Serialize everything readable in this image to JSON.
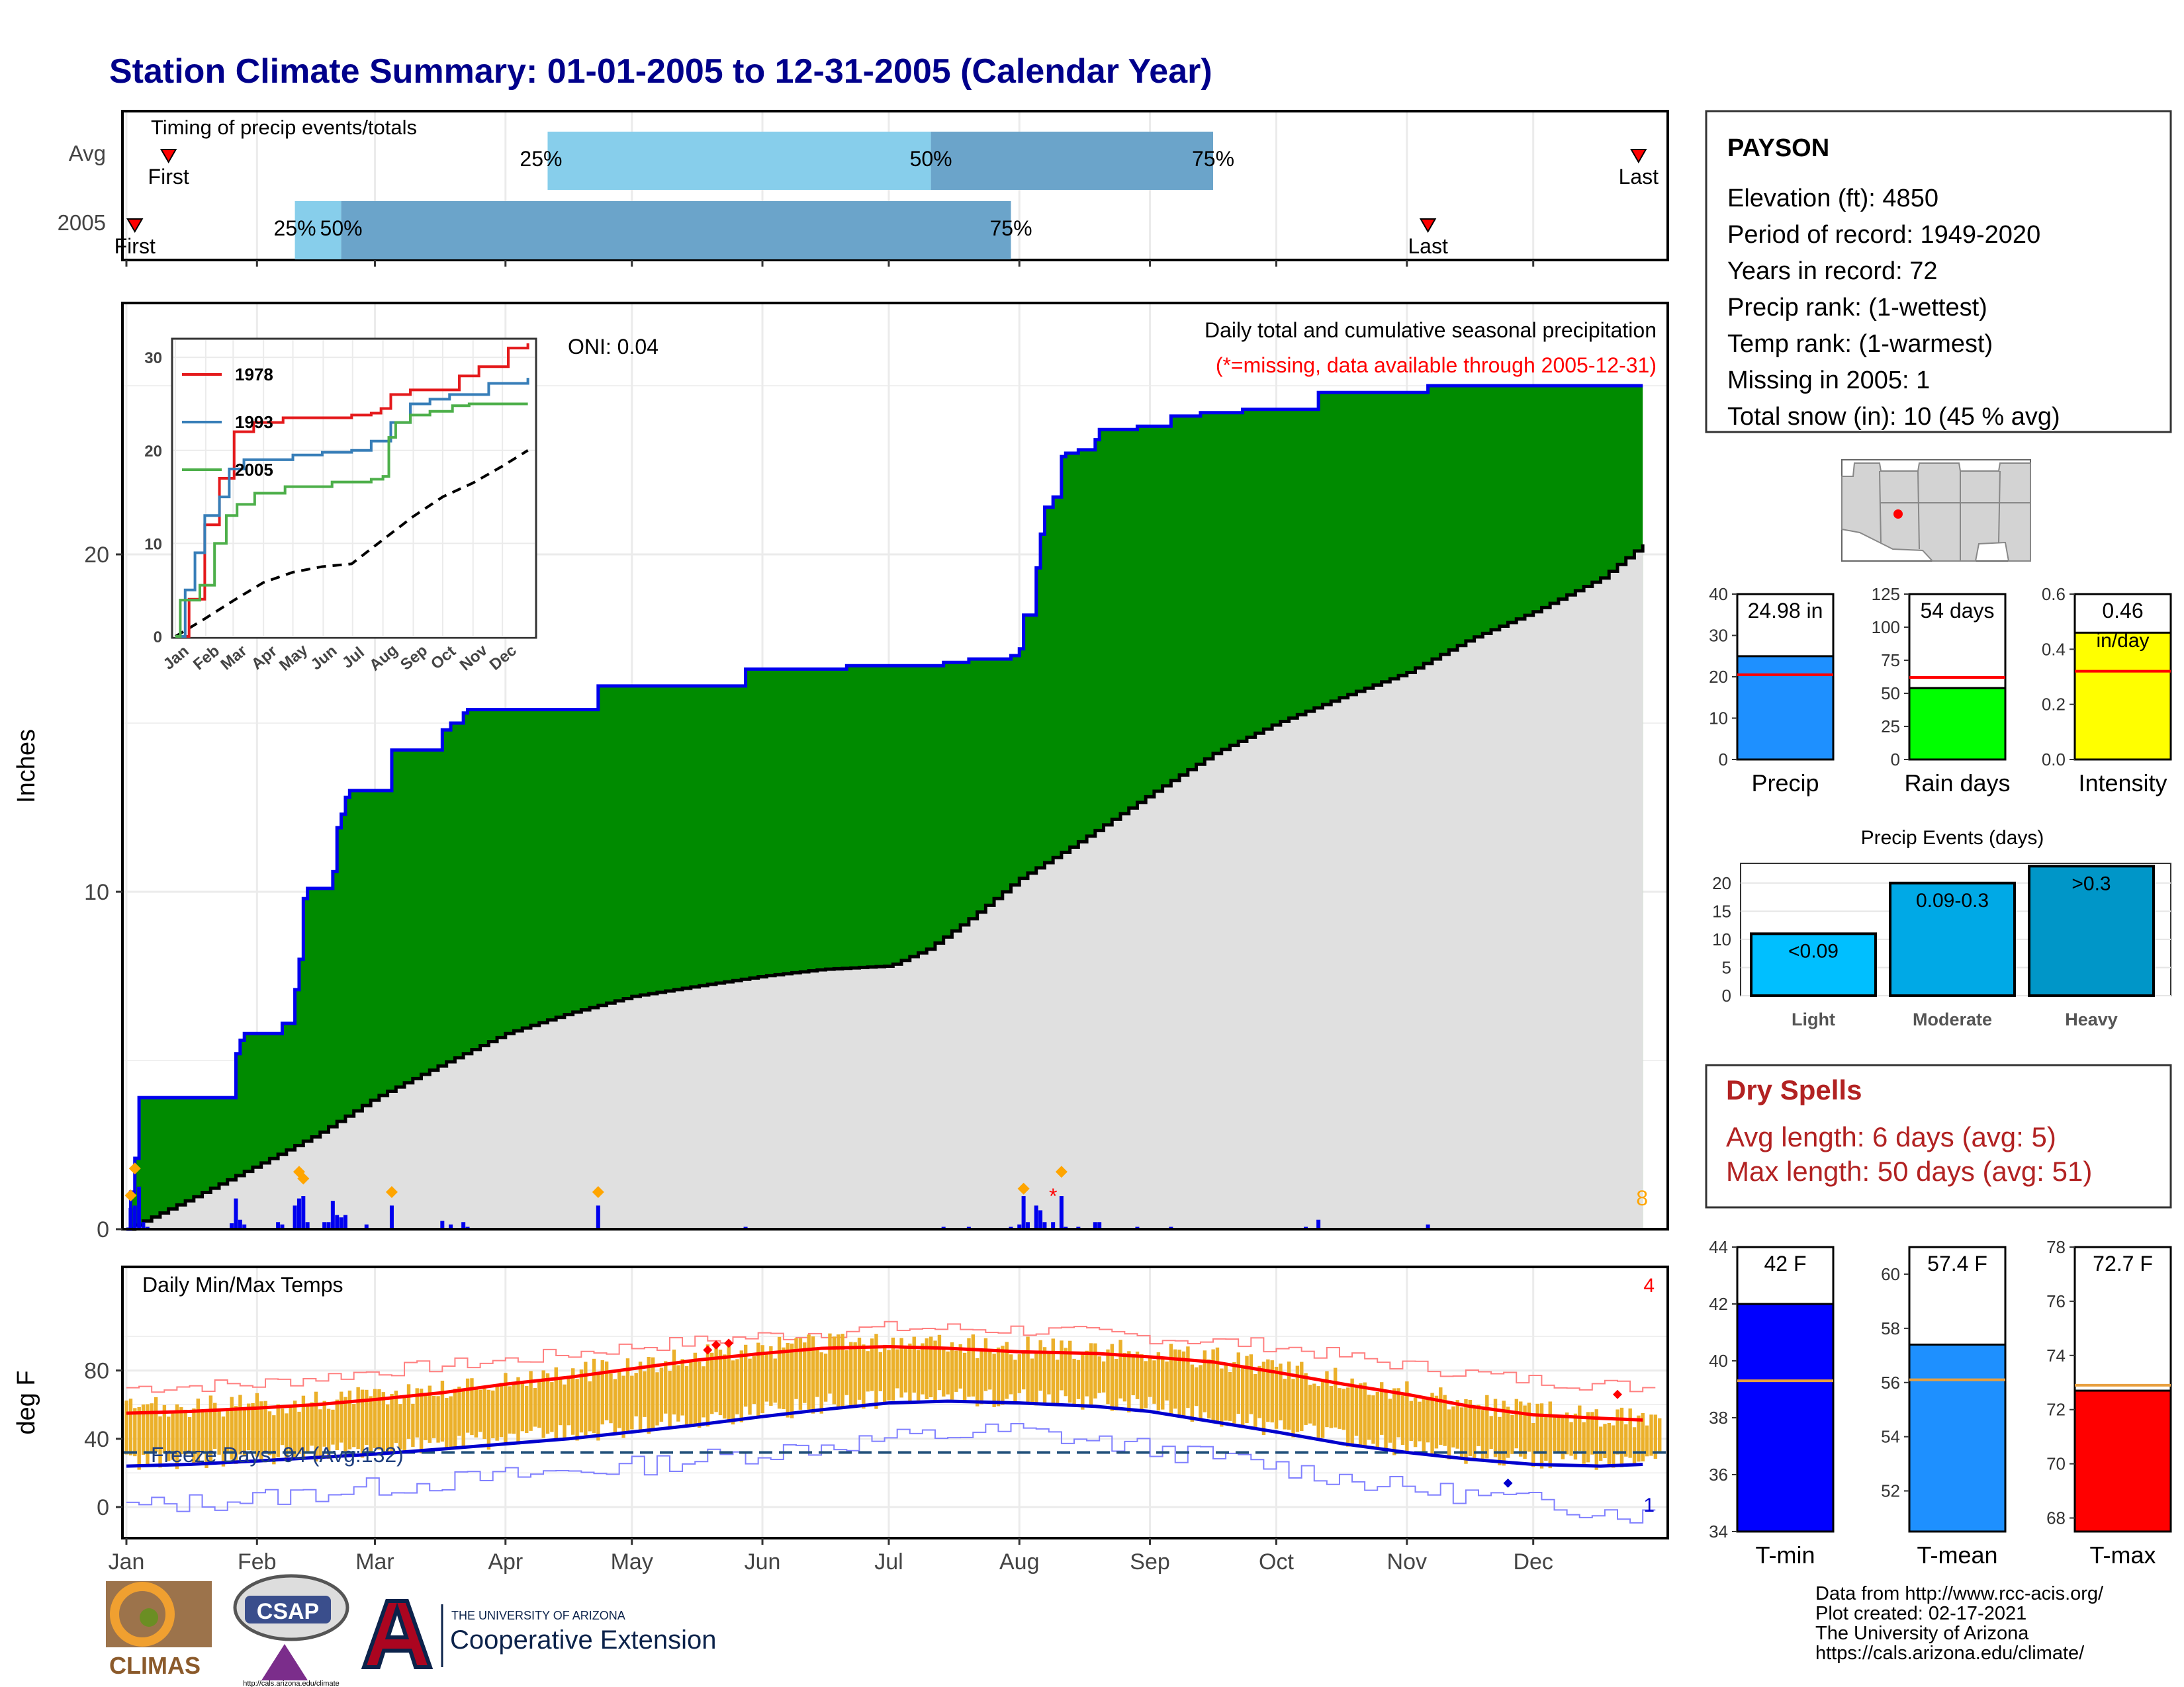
{
  "header": {
    "title": "Station Climate Summary: 01-01-2005 to 12-31-2005 (Calendar Year)"
  },
  "colors": {
    "title": "#00008B",
    "green_fill": "#008B00",
    "normal_fill": "#E0E0E0",
    "blue_line": "#0000EE",
    "orange": "#FFA500",
    "tavg_bar": "#EBB02A",
    "tmax_line": "#FF0000",
    "tmin_line": "#0000CD",
    "dryspell": "#B22222",
    "q_light": "#87CEEB",
    "q_dark": "#6BA4CA"
  },
  "timing": {
    "panel_label": "Timing of precip events/totals",
    "rows": [
      {
        "name": "Avg",
        "first": "First",
        "last": "Last",
        "first_day": 10,
        "last_day": 359,
        "q25_label": "25%",
        "q50_label": "50%",
        "q75_label": "75%",
        "q25_day": 100,
        "q50_day": 191,
        "q75_day": 258
      },
      {
        "name": "2005",
        "first": "First",
        "last": "Last",
        "first_day": 2,
        "last_day": 309,
        "q25_label": "25%",
        "q50_label": "50%",
        "q75_label": "75%",
        "q25_day": 40,
        "q50_day": 51,
        "q75_day": 210
      }
    ]
  },
  "precip": {
    "ylabel": "Inches",
    "annotation_title": "Daily total and cumulative seasonal precipitation",
    "annotation_missing": "(*=missing, data available through 2005-12-31)",
    "oni": "ONI: 0.04",
    "extremes_count": "8",
    "y_ticks": [
      "0",
      "10",
      "20"
    ],
    "cumulative_steps": [
      [
        0,
        0
      ],
      [
        1,
        1.1
      ],
      [
        2,
        2.1
      ],
      [
        3,
        3.9
      ],
      [
        25,
        3.9
      ],
      [
        26,
        5.2
      ],
      [
        27,
        5.6
      ],
      [
        28,
        5.8
      ],
      [
        36,
        5.8
      ],
      [
        37,
        6.1
      ],
      [
        40,
        7.1
      ],
      [
        41,
        8.0
      ],
      [
        42,
        9.8
      ],
      [
        43,
        10.1
      ],
      [
        48,
        10.1
      ],
      [
        49,
        10.6
      ],
      [
        50,
        11.9
      ],
      [
        51,
        12.3
      ],
      [
        52,
        12.8
      ],
      [
        53,
        13.0
      ],
      [
        59,
        13.0
      ],
      [
        63,
        14.2
      ],
      [
        74,
        14.2
      ],
      [
        75,
        14.8
      ],
      [
        77,
        15.0
      ],
      [
        80,
        15.3
      ],
      [
        81,
        15.4
      ],
      [
        89,
        15.4
      ],
      [
        111,
        15.4
      ],
      [
        112,
        16.1
      ],
      [
        141,
        16.1
      ],
      [
        147,
        16.6
      ],
      [
        161,
        16.6
      ],
      [
        171,
        16.7
      ],
      [
        185,
        16.7
      ],
      [
        194,
        16.8
      ],
      [
        200,
        16.9
      ],
      [
        210,
        17.0
      ],
      [
        212,
        17.2
      ],
      [
        213,
        18.2
      ],
      [
        216,
        19.6
      ],
      [
        217,
        20.6
      ],
      [
        218,
        21.4
      ],
      [
        220,
        21.7
      ],
      [
        222,
        22.9
      ],
      [
        223,
        23.0
      ],
      [
        226,
        23.1
      ],
      [
        229,
        23.1
      ],
      [
        230,
        23.4
      ],
      [
        231,
        23.7
      ],
      [
        235,
        23.7
      ],
      [
        240,
        23.8
      ],
      [
        248,
        24.1
      ],
      [
        255,
        24.2
      ],
      [
        265,
        24.3
      ],
      [
        283,
        24.8
      ],
      [
        309,
        25.0
      ],
      [
        360,
        25.0
      ]
    ],
    "normal_cumulative": [
      [
        0,
        0
      ],
      [
        15,
        0.9
      ],
      [
        31,
        1.9
      ],
      [
        45,
        2.8
      ],
      [
        59,
        3.9
      ],
      [
        75,
        4.9
      ],
      [
        90,
        5.8
      ],
      [
        105,
        6.4
      ],
      [
        120,
        6.9
      ],
      [
        135,
        7.2
      ],
      [
        151,
        7.5
      ],
      [
        165,
        7.7
      ],
      [
        181,
        7.8
      ],
      [
        190,
        8.3
      ],
      [
        200,
        9.2
      ],
      [
        212,
        10.4
      ],
      [
        225,
        11.4
      ],
      [
        243,
        12.9
      ],
      [
        258,
        14.1
      ],
      [
        273,
        15.0
      ],
      [
        289,
        15.8
      ],
      [
        304,
        16.5
      ],
      [
        319,
        17.5
      ],
      [
        334,
        18.3
      ],
      [
        350,
        19.3
      ],
      [
        360,
        20.3
      ]
    ],
    "daily_bars": [
      [
        1,
        0.9
      ],
      [
        2,
        1.0
      ],
      [
        3,
        1.8
      ],
      [
        4,
        0.3
      ],
      [
        5,
        0.1
      ],
      [
        25,
        0.25
      ],
      [
        26,
        1.3
      ],
      [
        27,
        0.4
      ],
      [
        28,
        0.2
      ],
      [
        36,
        0.3
      ],
      [
        37,
        0.2
      ],
      [
        40,
        1.0
      ],
      [
        41,
        1.3
      ],
      [
        42,
        1.4
      ],
      [
        43,
        0.3
      ],
      [
        47,
        0.3
      ],
      [
        48,
        0.3
      ],
      [
        49,
        1.2
      ],
      [
        50,
        0.6
      ],
      [
        51,
        0.5
      ],
      [
        52,
        0.6
      ],
      [
        57,
        0.2
      ],
      [
        63,
        1.0
      ],
      [
        75,
        0.35
      ],
      [
        77,
        0.2
      ],
      [
        80,
        0.3
      ],
      [
        81,
        0.1
      ],
      [
        112,
        1.0
      ],
      [
        147,
        0.1
      ],
      [
        171,
        0.05
      ],
      [
        194,
        0.1
      ],
      [
        200,
        0.1
      ],
      [
        210,
        0.1
      ],
      [
        212,
        0.2
      ],
      [
        213,
        1.4
      ],
      [
        214,
        0.3
      ],
      [
        216,
        1.0
      ],
      [
        217,
        0.8
      ],
      [
        218,
        0.3
      ],
      [
        220,
        0.3
      ],
      [
        222,
        1.4
      ],
      [
        223,
        0.1
      ],
      [
        226,
        0.1
      ],
      [
        230,
        0.3
      ],
      [
        231,
        0.3
      ],
      [
        240,
        0.1
      ],
      [
        248,
        0.1
      ],
      [
        280,
        0.1
      ],
      [
        283,
        0.4
      ],
      [
        309,
        0.2
      ]
    ],
    "extreme_marks": [
      [
        1,
        1.0
      ],
      [
        2,
        1.8
      ],
      [
        41,
        1.7
      ],
      [
        42,
        1.5
      ],
      [
        63,
        1.1
      ],
      [
        112,
        1.1
      ],
      [
        213,
        1.2
      ],
      [
        222,
        1.7
      ]
    ],
    "missing_marks": [
      [
        220,
        1.0
      ]
    ],
    "x_months": [
      "Jan",
      "Feb",
      "Mar",
      "Apr",
      "May",
      "Jun",
      "Jul",
      "Aug",
      "Sep",
      "Oct",
      "Nov",
      "Dec"
    ]
  },
  "inset": {
    "series": [
      {
        "name": "1978",
        "color": "#E41A1C",
        "points": [
          [
            0,
            0
          ],
          [
            14,
            4
          ],
          [
            30,
            12
          ],
          [
            45,
            17
          ],
          [
            60,
            22
          ],
          [
            80,
            23
          ],
          [
            110,
            23.5
          ],
          [
            150,
            23.5
          ],
          [
            180,
            23.8
          ],
          [
            200,
            24
          ],
          [
            210,
            24.5
          ],
          [
            220,
            26
          ],
          [
            240,
            26.5
          ],
          [
            270,
            26.5
          ],
          [
            290,
            28
          ],
          [
            310,
            29
          ],
          [
            335,
            29
          ],
          [
            340,
            31
          ],
          [
            360,
            31.5
          ]
        ]
      },
      {
        "name": "1993",
        "color": "#377EB8",
        "points": [
          [
            0,
            0
          ],
          [
            10,
            5
          ],
          [
            20,
            9
          ],
          [
            30,
            13
          ],
          [
            45,
            15
          ],
          [
            55,
            18
          ],
          [
            70,
            19
          ],
          [
            90,
            19
          ],
          [
            120,
            19.5
          ],
          [
            150,
            19.8
          ],
          [
            180,
            20
          ],
          [
            200,
            21
          ],
          [
            220,
            23
          ],
          [
            240,
            25
          ],
          [
            260,
            25.5
          ],
          [
            280,
            26
          ],
          [
            300,
            26
          ],
          [
            320,
            27.2
          ],
          [
            360,
            27.8
          ]
        ]
      },
      {
        "name": "2005",
        "color": "#4DAF4A",
        "points": [
          [
            0,
            0
          ],
          [
            5,
            3.9
          ],
          [
            25,
            5.5
          ],
          [
            40,
            10
          ],
          [
            52,
            13
          ],
          [
            63,
            14.2
          ],
          [
            81,
            15.4
          ],
          [
            112,
            16.1
          ],
          [
            160,
            16.6
          ],
          [
            200,
            16.9
          ],
          [
            212,
            17.2
          ],
          [
            218,
            21.4
          ],
          [
            225,
            23
          ],
          [
            240,
            23.8
          ],
          [
            260,
            24.2
          ],
          [
            283,
            24.8
          ],
          [
            300,
            25
          ],
          [
            360,
            25
          ]
        ]
      }
    ],
    "normal_points": [
      [
        0,
        0
      ],
      [
        30,
        1.9
      ],
      [
        60,
        3.9
      ],
      [
        90,
        5.8
      ],
      [
        120,
        6.9
      ],
      [
        150,
        7.5
      ],
      [
        180,
        7.8
      ],
      [
        212,
        10.4
      ],
      [
        243,
        12.9
      ],
      [
        273,
        15
      ],
      [
        304,
        16.5
      ],
      [
        334,
        18.3
      ],
      [
        360,
        20
      ]
    ],
    "y_ticks": [
      "0",
      "10",
      "20",
      "30"
    ],
    "x_months": [
      "Jan",
      "Feb",
      "Mar",
      "Apr",
      "May",
      "Jun",
      "Jul",
      "Aug",
      "Sep",
      "Oct",
      "Nov",
      "Dec"
    ]
  },
  "temps": {
    "ylabel": "deg F",
    "title": "Daily Min/Max Temps",
    "freeze_label": "Freeze Days: 94 (Avg:132)",
    "top_count": "4",
    "bottom_count": "1",
    "y_ticks": [
      "0",
      "40",
      "80"
    ],
    "freeze_line": 32,
    "tmax_normal": [
      [
        0,
        55
      ],
      [
        15,
        56
      ],
      [
        31,
        58
      ],
      [
        45,
        60
      ],
      [
        59,
        63
      ],
      [
        75,
        67
      ],
      [
        90,
        72
      ],
      [
        105,
        76
      ],
      [
        120,
        81
      ],
      [
        135,
        86
      ],
      [
        151,
        90
      ],
      [
        165,
        93
      ],
      [
        181,
        94
      ],
      [
        195,
        93
      ],
      [
        212,
        91
      ],
      [
        230,
        90
      ],
      [
        243,
        88
      ],
      [
        258,
        85
      ],
      [
        273,
        79
      ],
      [
        289,
        72
      ],
      [
        304,
        66
      ],
      [
        319,
        59
      ],
      [
        334,
        54
      ],
      [
        350,
        52
      ],
      [
        360,
        51
      ]
    ],
    "tmin_normal": [
      [
        0,
        24
      ],
      [
        15,
        25
      ],
      [
        31,
        27
      ],
      [
        45,
        29
      ],
      [
        59,
        31
      ],
      [
        75,
        34
      ],
      [
        90,
        37
      ],
      [
        105,
        40
      ],
      [
        120,
        44
      ],
      [
        135,
        48
      ],
      [
        151,
        53
      ],
      [
        165,
        57
      ],
      [
        181,
        61
      ],
      [
        195,
        62
      ],
      [
        212,
        61
      ],
      [
        230,
        59
      ],
      [
        243,
        56
      ],
      [
        258,
        50
      ],
      [
        273,
        44
      ],
      [
        289,
        37
      ],
      [
        304,
        32
      ],
      [
        319,
        28
      ],
      [
        334,
        25
      ],
      [
        350,
        24
      ],
      [
        360,
        25
      ]
    ],
    "record_high": [
      [
        0,
        70
      ],
      [
        30,
        72
      ],
      [
        60,
        80
      ],
      [
        90,
        86
      ],
      [
        120,
        94
      ],
      [
        150,
        100
      ],
      [
        180,
        105
      ],
      [
        210,
        104
      ],
      [
        240,
        100
      ],
      [
        270,
        95
      ],
      [
        300,
        84
      ],
      [
        330,
        75
      ],
      [
        360,
        70
      ]
    ],
    "record_low": [
      [
        0,
        0
      ],
      [
        30,
        5
      ],
      [
        60,
        12
      ],
      [
        90,
        18
      ],
      [
        120,
        24
      ],
      [
        150,
        32
      ],
      [
        180,
        40
      ],
      [
        210,
        45
      ],
      [
        240,
        35
      ],
      [
        270,
        25
      ],
      [
        300,
        12
      ],
      [
        330,
        4
      ],
      [
        360,
        -5
      ]
    ],
    "record_marks_high": [
      [
        138,
        92
      ],
      [
        140,
        95
      ],
      [
        143,
        96
      ]
    ],
    "record_marks_low": [
      [
        328,
        14
      ]
    ],
    "record_high_late": [
      [
        354,
        66
      ]
    ]
  },
  "station": {
    "name": "PAYSON",
    "lines": [
      "Elevation (ft): 4850",
      "Period of record: 1949-2020",
      "Years in record: 72",
      "Precip rank:  (1-wettest)",
      "Temp rank:  (1-warmest)",
      "Missing in 2005: 1",
      "Total snow (in): 10 (45 % avg)"
    ]
  },
  "summary_precip": [
    {
      "label": "Precip",
      "value_text": "24.98 in",
      "value": 24.98,
      "avg": 20.5,
      "ymax": 40,
      "ticks": [
        "0",
        "10",
        "20",
        "30",
        "40"
      ],
      "color": "#1E90FF"
    },
    {
      "label": "Rain days",
      "value_text": "54 days",
      "value": 54,
      "avg": 62,
      "ymax": 125,
      "ticks": [
        "0",
        "25",
        "50",
        "75",
        "100",
        "125"
      ],
      "color": "#00FF00"
    },
    {
      "label": "Intensity",
      "value_text": "0.46",
      "value_unit": "in/day",
      "value": 0.46,
      "avg": 0.32,
      "ymax": 0.6,
      "ticks": [
        "0.0",
        "0.2",
        "0.4",
        "0.6"
      ],
      "color": "#FFFF00"
    }
  ],
  "events": {
    "title": "Precip Events (days)",
    "ticks": [
      "0",
      "5",
      "10",
      "15",
      "20"
    ],
    "bars": [
      {
        "label": "Light",
        "range": "<0.09",
        "value": 11,
        "color": "#00BFFF"
      },
      {
        "label": "Moderate",
        "range": "0.09-0.3",
        "value": 20,
        "color": "#00A9E6"
      },
      {
        "label": "Heavy",
        "range": ">0.3",
        "value": 23,
        "color": "#0096C8"
      }
    ]
  },
  "dry_spells": {
    "title": "Dry Spells",
    "avg_line": "Avg length: 6 days (avg: 5)",
    "max_line": "Max length: 50 days (avg: 51)"
  },
  "summary_temp": [
    {
      "label": "T-min",
      "value_text": "42 F",
      "value": 42,
      "avg": 39.3,
      "ymin": 34,
      "ymax": 44,
      "ticks": [
        "34",
        "36",
        "38",
        "40",
        "42",
        "44"
      ],
      "color": "#0000FF"
    },
    {
      "label": "T-mean",
      "value_text": "57.4 F",
      "value": 57.4,
      "avg": 56.1,
      "ymin": 50.5,
      "ymax": 61,
      "ticks": [
        "52",
        "54",
        "56",
        "58",
        "60"
      ],
      "color": "#1E90FF"
    },
    {
      "label": "T-max",
      "value_text": "72.7 F",
      "value": 72.7,
      "avg": 72.9,
      "ymin": 67.5,
      "ymax": 78,
      "ticks": [
        "68",
        "70",
        "72",
        "74",
        "76",
        "78"
      ],
      "color": "#FF0000"
    }
  ],
  "logos": {
    "climas": "CLIMAS",
    "csap": "CSAP",
    "ua_line1": "THE UNIVERSITY OF ARIZONA",
    "ua_line2": "Cooperative Extension",
    "csap_url": "http://cals.arizona.edu/climate"
  },
  "footer": {
    "lines": [
      "Data from http://www.rcc-acis.org/",
      "Plot created: 02-17-2021",
      "The University of Arizona",
      "https://cals.arizona.edu/climate/"
    ]
  }
}
